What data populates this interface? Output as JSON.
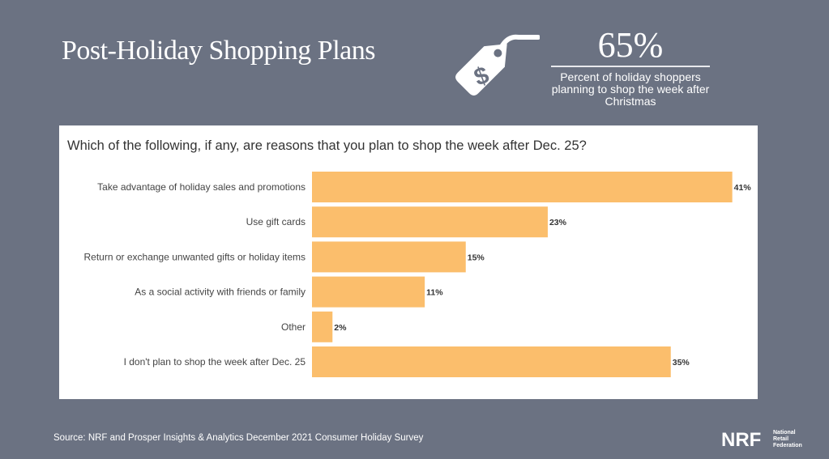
{
  "header": {
    "title": "Post-Holiday Shopping Plans"
  },
  "highlight": {
    "icon": "price-tag-dollar-icon",
    "value": "65%",
    "description": "Percent of holiday shoppers planning to shop the week after Christmas"
  },
  "chart_data": {
    "type": "bar",
    "orientation": "horizontal",
    "title": "Which of the following, if any, are reasons that you plan to shop the week after Dec. 25?",
    "categories": [
      "Take advantage of holiday sales and promotions",
      "Use gift cards",
      "Return or exchange unwanted gifts or holiday items",
      "As a social activity with friends or family",
      "Other",
      "I don't plan to shop the week after Dec. 25"
    ],
    "values": [
      41,
      23,
      15,
      11,
      2,
      35
    ],
    "data_labels": [
      "41%",
      "23%",
      "15%",
      "11%",
      "2%",
      "35%"
    ],
    "xlim": [
      0,
      45
    ],
    "grid": false,
    "bar_color": "#fbbe6c"
  },
  "footer": {
    "source": "Source: NRF and Prosper Insights & Analytics December 2021 Consumer Holiday Survey",
    "logo_text": "NRF",
    "logo_subtext": [
      "National",
      "Retail",
      "Federation"
    ]
  }
}
